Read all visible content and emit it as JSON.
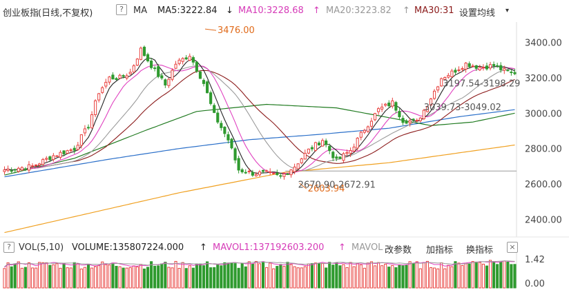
{
  "header": {
    "title": "创业板指",
    "subtitle": "(日线,不复权)",
    "help": "?",
    "ma_label": "MA",
    "ma5": "MA5:3222.84",
    "ma5_arrow": "↓",
    "ma10": "MA10:3228.68",
    "ma10_arrow": "↑",
    "ma20": "MA20:3223.82",
    "ma20_arrow": "↑",
    "ma30": "MA30:31",
    "settings": "设置均线",
    "settings_caret": "▾"
  },
  "volume_header": {
    "help": "?",
    "vol": "VOL(5,10)",
    "volume": "VOLUME:135807224.000",
    "volume_arrow": "↑",
    "mavol1": "MAVOL1:137192603.200",
    "mavol1_arrow": "↑",
    "mavol_cut": "MAVOL",
    "change_params": "改参数",
    "add_indicator": "加指标",
    "swap_indicator": "换指标",
    "close": "×"
  },
  "colors": {
    "up": "#e8413e",
    "down": "#2f9a2f",
    "ma5": "#222222",
    "ma10": "#e040c0",
    "ma20": "#9a9a9a",
    "ma30": "#8b1a1a",
    "ma60": "#1f7a1f",
    "ma120": "#2a6fc9",
    "ma250": "#f0a020",
    "annotation": "#e06a1a"
  },
  "chart_data": {
    "type": "candlestick",
    "y_ticks": [
      "3400.00",
      "3200.00",
      "3000.00",
      "2800.00",
      "2600.00",
      "2400.00"
    ],
    "ylim": [
      2300,
      3500
    ],
    "reference_line": 2672.91,
    "annotations": [
      {
        "text": "3476.00",
        "value": 3476.0
      },
      {
        "text": "2603.94",
        "value": 2603.94
      },
      {
        "text": "2670.90-2672.91",
        "value": 2672.91
      },
      {
        "text": "3197.54-3198.29",
        "value": 3198.29
      },
      {
        "text": "3039.73-3049.02",
        "value": 3049.02
      }
    ],
    "volume_ticks": [
      "1.42",
      "0.00"
    ],
    "volume_ylim": [
      0,
      1.42
    ],
    "n_candles": 147,
    "key_closes": [
      [
        0,
        2680
      ],
      [
        8,
        2700
      ],
      [
        14,
        2760
      ],
      [
        20,
        2800
      ],
      [
        24,
        2930
      ],
      [
        27,
        3120
      ],
      [
        30,
        3200
      ],
      [
        33,
        3200
      ],
      [
        36,
        3230
      ],
      [
        39,
        3360
      ],
      [
        42,
        3270
      ],
      [
        46,
        3160
      ],
      [
        49,
        3280
      ],
      [
        53,
        3330
      ],
      [
        57,
        3170
      ],
      [
        60,
        2990
      ],
      [
        64,
        2850
      ],
      [
        67,
        2680
      ],
      [
        71,
        2660
      ],
      [
        75,
        2660
      ],
      [
        79,
        2640
      ],
      [
        83,
        2700
      ],
      [
        87,
        2790
      ],
      [
        91,
        2850
      ],
      [
        95,
        2730
      ],
      [
        99,
        2790
      ],
      [
        103,
        2910
      ],
      [
        107,
        3020
      ],
      [
        111,
        3060
      ],
      [
        114,
        2960
      ],
      [
        118,
        2950
      ],
      [
        121,
        3050
      ],
      [
        125,
        3200
      ],
      [
        128,
        3230
      ],
      [
        132,
        3280
      ],
      [
        136,
        3260
      ],
      [
        140,
        3270
      ],
      [
        143,
        3240
      ],
      [
        146,
        3223
      ]
    ],
    "ma_keypoints": {
      "ma60": [
        [
          0,
          2650
        ],
        [
          20,
          2745
        ],
        [
          40,
          2900
        ],
        [
          55,
          3010
        ],
        [
          75,
          3050
        ],
        [
          95,
          3030
        ],
        [
          110,
          2975
        ],
        [
          122,
          2930
        ],
        [
          134,
          2950
        ],
        [
          146,
          3000
        ]
      ],
      "ma120": [
        [
          0,
          2640
        ],
        [
          30,
          2740
        ],
        [
          50,
          2800
        ],
        [
          70,
          2850
        ],
        [
          90,
          2880
        ],
        [
          110,
          2915
        ],
        [
          130,
          2980
        ],
        [
          146,
          3020
        ]
      ],
      "ma250": [
        [
          0,
          2325
        ],
        [
          50,
          2550
        ],
        [
          80,
          2665
        ],
        [
          110,
          2720
        ],
        [
          146,
          2820
        ]
      ]
    },
    "volume_series": "daily volume bars colored by candle direction, with MAVOL lines"
  }
}
